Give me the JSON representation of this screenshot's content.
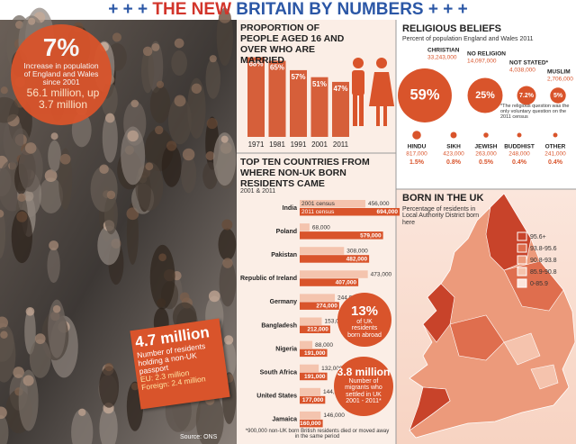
{
  "header": {
    "title_parts": [
      "+ + +",
      "THE NEW",
      "BRITAIN BY NUMBERS",
      "+ + +"
    ]
  },
  "photo": {
    "growth": {
      "value": "7%",
      "text": "Increase in population of England and Wales since 2001",
      "total": "56.1 million, up 3.7 million"
    },
    "passports": {
      "value": "4.7 million",
      "text": "Number of residents holding a non-UK passport",
      "eu": "EU: 2.3 million",
      "foreign": "Foreign: 2.4 million"
    },
    "source": "Source: ONS"
  },
  "chart_data": [
    {
      "type": "bar",
      "title": "PROPORTION OF PEOPLE AGED 16 AND OVER WHO ARE MARRIED",
      "categories": [
        "1971",
        "1981",
        "1991",
        "2001",
        "2011"
      ],
      "values": [
        68,
        65,
        57,
        51,
        47
      ],
      "value_labels": [
        "68%",
        "65%",
        "57%",
        "51%",
        "47%"
      ],
      "color": "#d65f3a"
    },
    {
      "type": "hbar",
      "title": "TOP TEN COUNTRIES FROM WHERE NON-UK BORN RESIDENTS CAME",
      "subtitle": "2001 & 2011",
      "categories": [
        "India",
        "Poland",
        "Pakistan",
        "Republic of Ireland",
        "Germany",
        "Bangladesh",
        "Nigeria",
        "South Africa",
        "United States",
        "Jamaica"
      ],
      "series": [
        {
          "name": "2001 census",
          "color": "#f4c4ae",
          "values": [
            456000,
            68000,
            308000,
            473000,
            244000,
            153000,
            88000,
            132000,
            144000,
            146000
          ],
          "value_labels": [
            "456,000",
            "68,000",
            "308,000",
            "473,000",
            "244,000",
            "153,000",
            "88,000",
            "132,000",
            "144,000",
            "146,000"
          ]
        },
        {
          "name": "2011 census",
          "color": "#d9542b",
          "values": [
            694000,
            579000,
            482000,
            407000,
            274000,
            212000,
            191000,
            191000,
            177000,
            160000
          ],
          "value_labels": [
            "694,000",
            "579,000",
            "482,000",
            "407,000",
            "274,000",
            "212,000",
            "191,000",
            "191,000",
            "177,000",
            "160,000"
          ]
        }
      ],
      "note": "*900,000 non-UK born British residents died or moved away in the same period",
      "callouts": [
        {
          "value": "13%",
          "text": "of UK residents born abroad"
        },
        {
          "value": "3.8 million",
          "text": "Number of migrants who settled in UK 2001 - 2011*"
        }
      ]
    },
    {
      "type": "bubble",
      "title": "RELIGIOUS BELIEFS",
      "subtitle": "Percent of population England and Wales 2011",
      "categories": [
        "CHRISTIAN",
        "NO RELIGION",
        "NOT STATED*",
        "MUSLIM",
        "HINDU",
        "SIKH",
        "JEWISH",
        "BUDDHIST",
        "OTHER"
      ],
      "values": [
        59,
        25,
        7.2,
        5,
        1.5,
        0.8,
        0.5,
        0.4,
        0.4
      ],
      "value_labels": [
        "59%",
        "25%",
        "7.2%",
        "5%",
        "1.5%",
        "0.8%",
        "0.5%",
        "0.4%",
        "0.4%"
      ],
      "counts": [
        33243000,
        14097000,
        4038000,
        2706000,
        817000,
        423000,
        263000,
        248000,
        241000
      ],
      "count_labels": [
        "33,243,000",
        "14,097,000",
        "4,038,000",
        "2,706,000",
        "817,000",
        "423,000",
        "263,000",
        "248,000",
        "241,000"
      ],
      "color": "#d9542b",
      "note": "*The religious question was the only voluntary question on the 2011 census"
    }
  ],
  "map": {
    "title": "BORN IN THE UK",
    "subtitle": "Percentage of residents in Local Authority District born here",
    "legend": [
      {
        "label": "95.6+",
        "color": "#c8432a"
      },
      {
        "label": "93.8-95.6",
        "color": "#df6e4e"
      },
      {
        "label": "90.8-93.8",
        "color": "#ec9a7b"
      },
      {
        "label": "85.9-90.8",
        "color": "#f5c3ad"
      },
      {
        "label": "0-85.9",
        "color": "#fce6dc"
      }
    ]
  }
}
